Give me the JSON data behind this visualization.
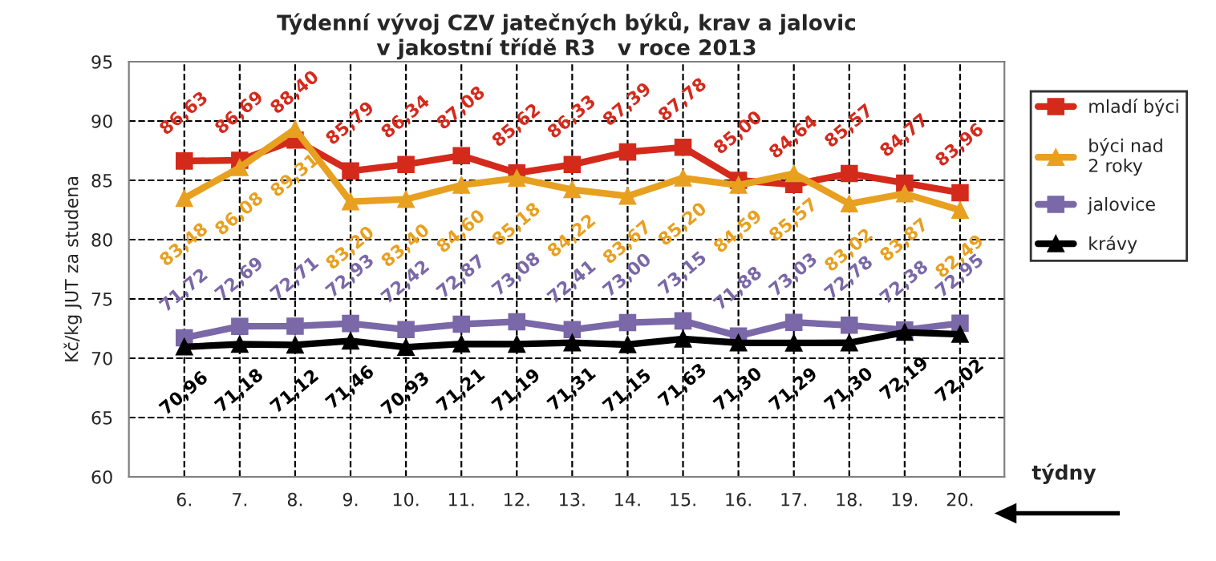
{
  "chart_data": {
    "type": "line",
    "title": "Týdenní vývoj CZV jatečných býků, krav a jalovic\nv jakostní třídě R3   v roce 2013",
    "xlabel": "týdny",
    "ylabel": "Kč/kg JUT za studena",
    "categories": [
      "6.",
      "7.",
      "8.",
      "9.",
      "10.",
      "11.",
      "12.",
      "13.",
      "14.",
      "15.",
      "16.",
      "17.",
      "18.",
      "19.",
      "20."
    ],
    "ylim": [
      60,
      95
    ],
    "yticks": [
      60,
      65,
      70,
      75,
      80,
      85,
      90,
      95
    ],
    "grid": true,
    "legend": "right",
    "line_style": "solid",
    "series": [
      {
        "name": "mladí býci",
        "color": "#d42a1c",
        "marker": "square",
        "values": [
          86.63,
          86.69,
          88.4,
          85.79,
          86.34,
          87.08,
          85.62,
          86.33,
          87.39,
          87.78,
          85.0,
          84.64,
          85.57,
          84.77,
          83.96
        ],
        "value_labels": [
          "86,63",
          "86,69",
          "88,40",
          "85,79",
          "86,34",
          "87,08",
          "85,62",
          "86,33",
          "87,39",
          "87,78",
          "85,00",
          "84,64",
          "85,57",
          "84,77",
          "83,96"
        ]
      },
      {
        "name": "býci nad\n2 roky",
        "color": "#e8a020",
        "marker": "triangle",
        "values": [
          83.48,
          86.08,
          89.31,
          83.2,
          83.4,
          84.6,
          85.18,
          84.22,
          83.67,
          85.2,
          84.59,
          85.57,
          83.02,
          83.87,
          82.49
        ],
        "value_labels": [
          "83,48",
          "86,08",
          "89,31",
          "83,20",
          "83,40",
          "84,60",
          "85,18",
          "84,22",
          "83,67",
          "85,20",
          "84,59",
          "85,57",
          "83,02",
          "83,87",
          "82,49"
        ]
      },
      {
        "name": "jalovice",
        "color": "#7a68a8",
        "marker": "square",
        "values": [
          71.72,
          72.69,
          72.71,
          72.93,
          72.42,
          72.87,
          73.08,
          72.41,
          73.0,
          73.15,
          71.88,
          73.03,
          72.78,
          72.38,
          72.95
        ],
        "value_labels": [
          "71,72",
          "72,69",
          "72,71",
          "72,93",
          "72,42",
          "72,87",
          "73,08",
          "72,41",
          "73,00",
          "73,15",
          "71,88",
          "73,03",
          "72,78",
          "72,38",
          "72,95"
        ]
      },
      {
        "name": "krávy",
        "color": "#000000",
        "marker": "triangle",
        "values": [
          70.96,
          71.18,
          71.12,
          71.46,
          70.93,
          71.21,
          71.19,
          71.31,
          71.15,
          71.63,
          71.3,
          71.29,
          71.3,
          72.19,
          72.02
        ],
        "value_labels": [
          "70,96",
          "71,18",
          "71,12",
          "71,46",
          "70,93",
          "71,21",
          "71,19",
          "71,31",
          "71,15",
          "71,63",
          "71,30",
          "71,29",
          "71,30",
          "72,19",
          "72,02"
        ]
      }
    ]
  }
}
